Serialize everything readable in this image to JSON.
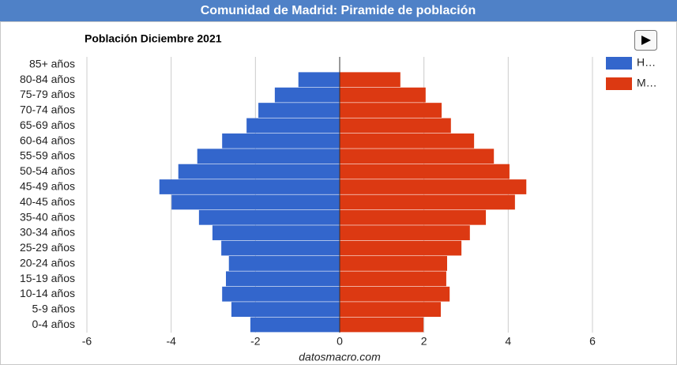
{
  "chart_data": {
    "type": "population-pyramid",
    "title": "Comunidad de Madrid: Piramide de población",
    "subtitle": "Población Diciembre 2021",
    "source": "datosmacro.com",
    "categories": [
      "85+ años",
      "80-84 años",
      "75-79 años",
      "70-74 años",
      "65-69 años",
      "60-64 años",
      "55-59 años",
      "50-54 años",
      "45-49 años",
      "40-45 años",
      "35-40 años",
      "30-34 años",
      "25-29 años",
      "20-24 años",
      "15-19 años",
      "10-14 años",
      "5-9 años",
      "0-4 años"
    ],
    "series": [
      {
        "name": "H…",
        "color": "#3366cc",
        "values": [
          0,
          -0.98,
          -1.54,
          -1.93,
          -2.21,
          -2.79,
          -3.38,
          -3.83,
          -4.28,
          -3.99,
          -3.34,
          -3.02,
          -2.81,
          -2.63,
          -2.7,
          -2.79,
          -2.57,
          -2.12
        ]
      },
      {
        "name": "M…",
        "color": "#dc3912",
        "values": [
          0,
          1.44,
          2.04,
          2.42,
          2.64,
          3.19,
          3.66,
          4.03,
          4.43,
          4.16,
          3.47,
          3.09,
          2.89,
          2.55,
          2.53,
          2.61,
          2.4,
          1.99
        ]
      }
    ],
    "xlim": [
      -6,
      6
    ],
    "xticks": [
      -6,
      -4,
      -2,
      0,
      2,
      4,
      6
    ],
    "grid": true
  }
}
